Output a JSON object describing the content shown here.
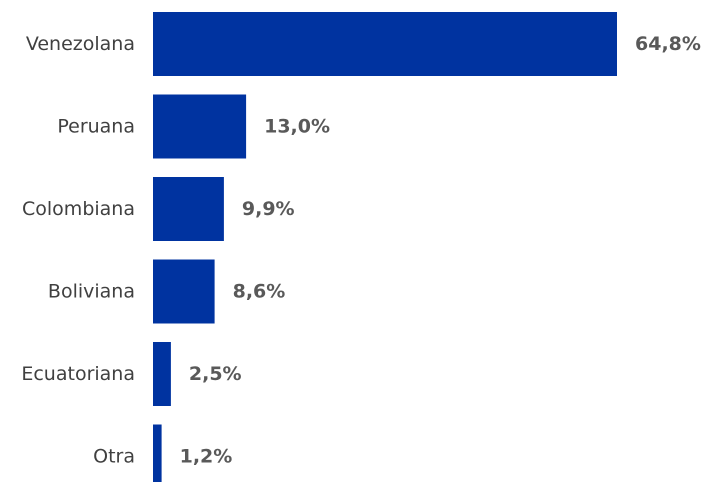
{
  "chart_data": {
    "type": "bar",
    "orientation": "horizontal",
    "categories": [
      "Venezolana",
      "Peruana",
      "Colombiana",
      "Boliviana",
      "Ecuatoriana",
      "Otra"
    ],
    "values": [
      64.8,
      13.0,
      9.9,
      8.6,
      2.5,
      1.2
    ],
    "value_labels": [
      "64,8%",
      "13,0%",
      "9,9%",
      "8,6%",
      "2,5%",
      "1,2%"
    ],
    "unit": "%",
    "xlim": [
      0,
      64.8
    ],
    "grid": false,
    "legend": "none",
    "bar_color": "#0033A0",
    "category_label_color": "#404040",
    "value_label_color": "#595959"
  }
}
